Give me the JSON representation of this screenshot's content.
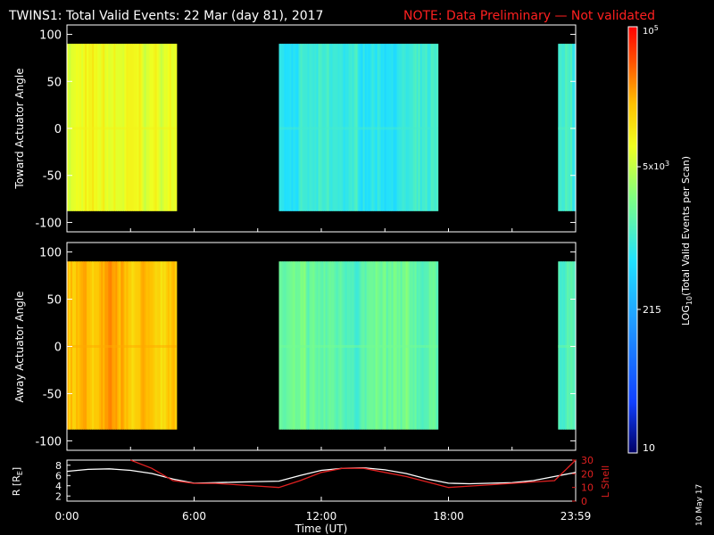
{
  "header": {
    "title": "TWINS1: Total Valid Events: 22 Mar (day  81), 2017",
    "note": "NOTE: Data Preliminary — Not validated",
    "title_color": "#ffffff",
    "note_color": "#ff2020"
  },
  "footer": {
    "date_stamp": "10 May 17"
  },
  "colorbar": {
    "label_main": "LOG",
    "label_sub": "10",
    "label_rest": "(Total Valid  Events per Scan)",
    "tick_top_base": "10",
    "tick_top_exp": "5",
    "tick_5k_base": "5x10",
    "tick_5k_exp": "3",
    "tick_215": "215",
    "tick_10": "10"
  },
  "chart_data": [
    {
      "type": "heatmap",
      "panel": "toward",
      "ylabel": "Toward Actuator Angle",
      "ylim": [
        -110,
        110
      ],
      "yticks": [
        "100",
        "50",
        "0",
        "-50",
        "-100"
      ],
      "xlim_hours": [
        0,
        24
      ],
      "data_y_range": [
        -88,
        90
      ],
      "segments": [
        {
          "start": "0:00",
          "end": "5:10",
          "start_h": 0.0,
          "end_h": 5.17,
          "base_log": 3.55
        },
        {
          "start": "10:00",
          "end": "17:30",
          "start_h": 10.0,
          "end_h": 17.5,
          "base_log": 2.4
        },
        {
          "start": "23:10",
          "end": "23:59",
          "start_h": 23.17,
          "end_h": 24.0,
          "base_log": 2.5
        }
      ]
    },
    {
      "type": "heatmap",
      "panel": "away",
      "ylabel": "Away Actuator Angle",
      "ylim": [
        -110,
        110
      ],
      "yticks": [
        "100",
        "50",
        "0",
        "-50",
        "-100"
      ],
      "xlim_hours": [
        0,
        24
      ],
      "data_y_range": [
        -88,
        90
      ],
      "segments": [
        {
          "start": "0:00",
          "end": "5:10",
          "start_h": 0.0,
          "end_h": 5.17,
          "base_log": 4.05
        },
        {
          "start": "10:00",
          "end": "17:30",
          "start_h": 10.0,
          "end_h": 17.5,
          "base_log": 2.75
        },
        {
          "start": "23:10",
          "end": "23:59",
          "start_h": 23.17,
          "end_h": 24.0,
          "base_log": 2.7
        }
      ]
    },
    {
      "type": "line",
      "panel": "orbit",
      "ylabel_left": "R [R",
      "ylabel_left_sub": "E",
      "ylabel_left_end": "]",
      "ylabel_right": "L Shell",
      "xlabel": "Time (UT)",
      "xticks": [
        "0:00",
        "6:00",
        "12:00",
        "18:00",
        "23:59"
      ],
      "left_ylim": [
        1,
        9
      ],
      "left_yticks": [
        "8",
        "6",
        "4",
        "2"
      ],
      "right_ylim": [
        0,
        30
      ],
      "right_yticks": [
        "30",
        "20",
        "10",
        "0"
      ],
      "series": [
        {
          "axis": "left",
          "color": "#ffffff",
          "x": [
            0,
            1,
            2,
            3,
            4,
            5,
            6,
            7,
            8,
            9,
            10,
            11,
            12,
            13,
            14,
            15,
            16,
            17,
            18,
            19,
            20,
            21,
            22,
            23,
            24
          ],
          "y": [
            6.8,
            7.2,
            7.3,
            7.0,
            6.4,
            5.3,
            4.5,
            4.6,
            4.7,
            4.8,
            4.9,
            6.0,
            7.0,
            7.4,
            7.5,
            7.1,
            6.4,
            5.3,
            4.5,
            4.4,
            4.5,
            4.6,
            5.0,
            5.8,
            6.6
          ]
        },
        {
          "axis": "right",
          "color": "#e02020",
          "x": [
            3,
            4,
            5,
            6,
            7,
            8,
            9,
            10,
            11,
            12,
            13,
            14,
            15,
            16,
            17,
            18,
            19,
            20,
            21,
            22,
            23,
            24
          ],
          "y": [
            30,
            24,
            15,
            13,
            13,
            12,
            11,
            10,
            15,
            21,
            24,
            24,
            21,
            18,
            14,
            10,
            11,
            12,
            13,
            14,
            15,
            30
          ]
        }
      ]
    }
  ]
}
